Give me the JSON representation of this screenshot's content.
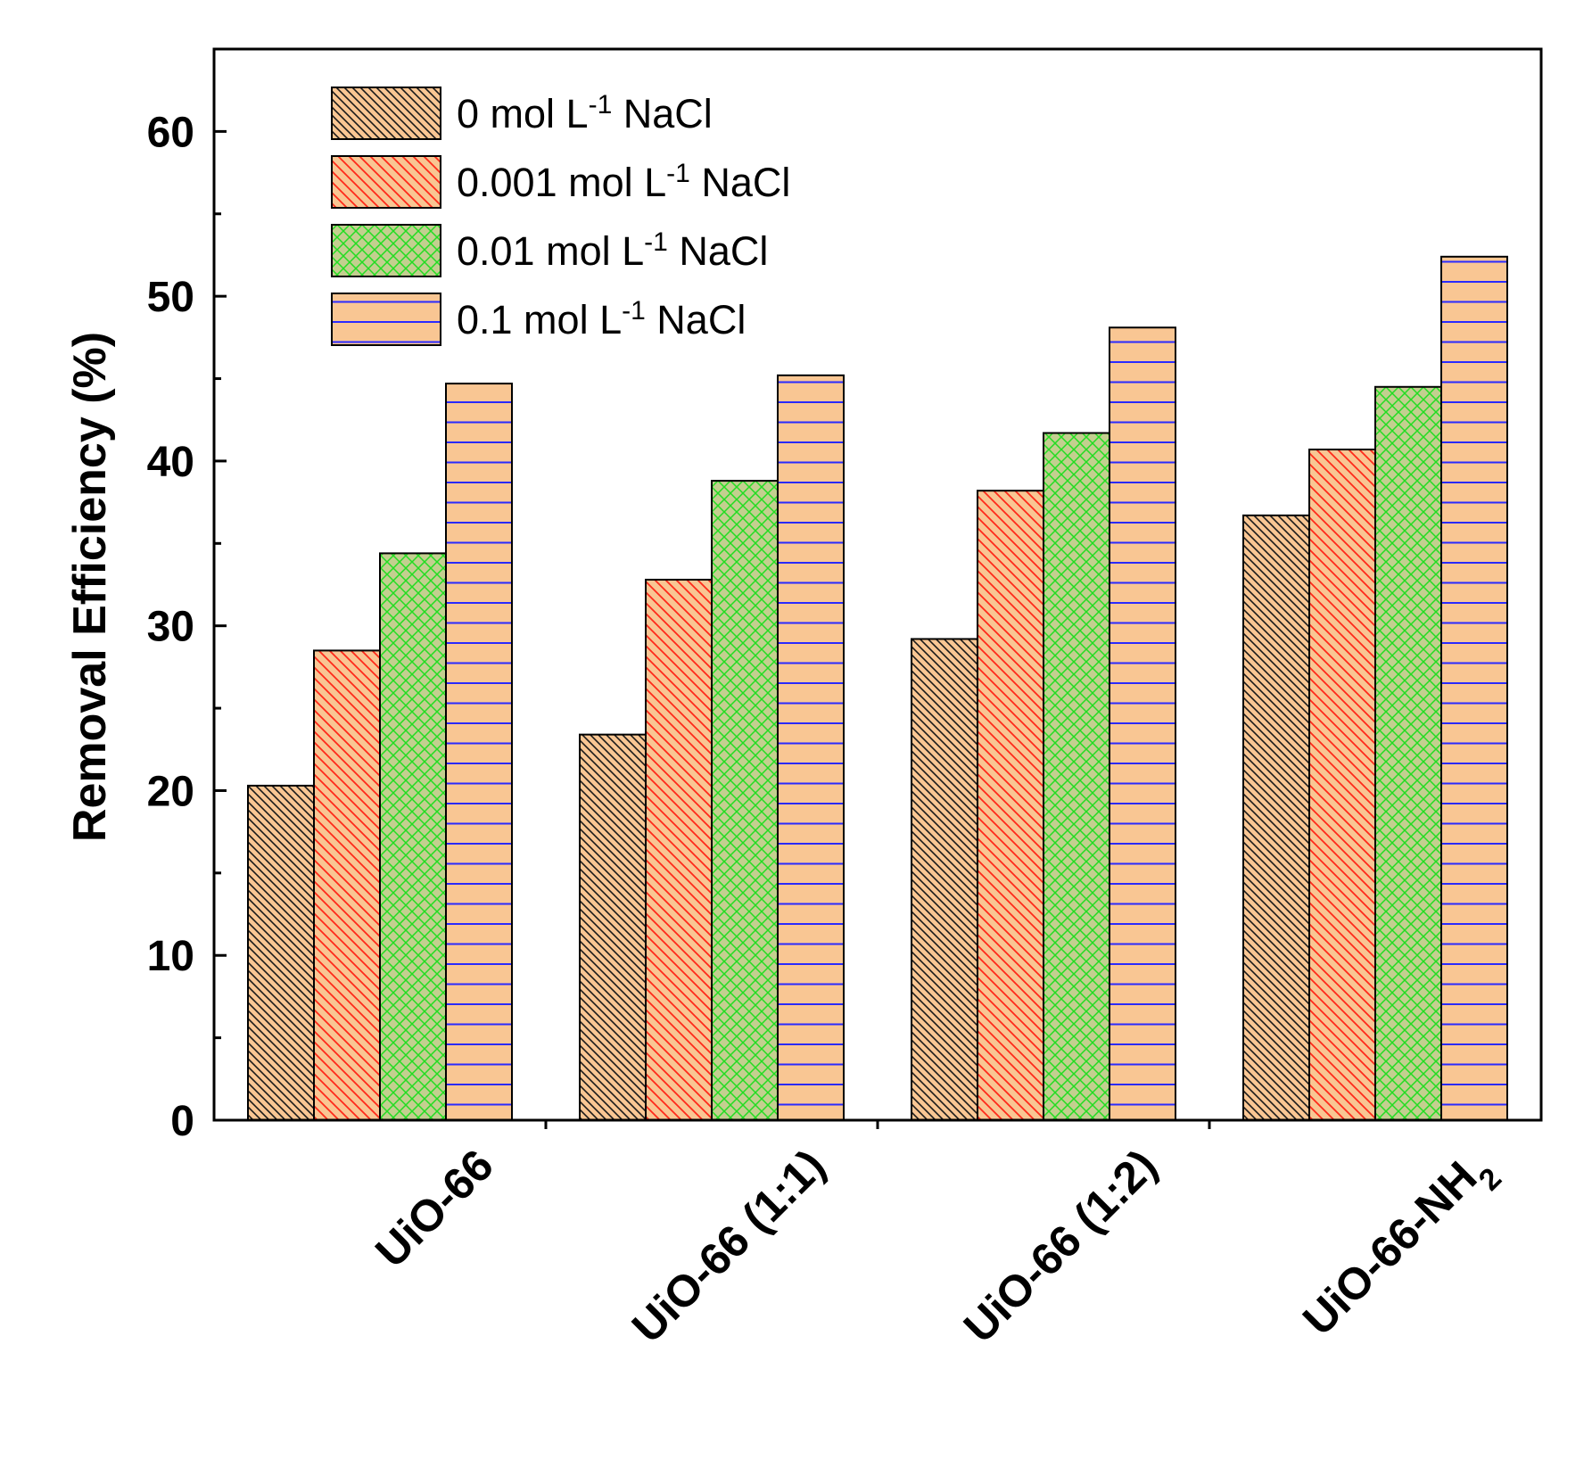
{
  "chart_data": {
    "type": "bar",
    "title": "",
    "xlabel": "",
    "ylabel": "Removal Efficiency (%)",
    "ylim": [
      0,
      65
    ],
    "yticks": [
      0,
      10,
      20,
      30,
      40,
      50,
      60
    ],
    "ytick_labels": [
      "0",
      "10",
      "20",
      "30",
      "40",
      "50",
      "60"
    ],
    "grid": false,
    "legend_position": "top-left",
    "categories": [
      {
        "main": "UiO-66",
        "sub": ""
      },
      {
        "main": "UiO-66 (1:1)",
        "sub": ""
      },
      {
        "main": "UiO-66 (1:2)",
        "sub": ""
      },
      {
        "main": "UiO-66-NH",
        "sub": "2"
      }
    ],
    "series": [
      {
        "name": "0 mol L-1 NaCl",
        "label_parts": {
          "pre": "0 mol L",
          "sup": "-1",
          "post": " NaCl"
        },
        "values": [
          20.3,
          23.4,
          29.2,
          36.7
        ],
        "fill": "#f9c693",
        "hatch": "backslash-dense",
        "hatch_color": "#1a1a1a"
      },
      {
        "name": "0.001 mol L-1 NaCl",
        "label_parts": {
          "pre": "0.001 mol L",
          "sup": "-1",
          "post": " NaCl"
        },
        "values": [
          28.5,
          32.8,
          38.2,
          40.7
        ],
        "fill": "#f9c693",
        "hatch": "slash",
        "hatch_color": "#ff2a1a"
      },
      {
        "name": "0.01 mol L-1 NaCl",
        "label_parts": {
          "pre": "0.01 mol L",
          "sup": "-1",
          "post": " NaCl"
        },
        "values": [
          34.4,
          38.8,
          41.7,
          44.5
        ],
        "fill": "#c3cf8f",
        "hatch": "cross",
        "hatch_color": "#22dd22"
      },
      {
        "name": "0.1 mol L-1 NaCl",
        "label_parts": {
          "pre": "0.1 mol L",
          "sup": "-1",
          "post": " NaCl"
        },
        "values": [
          44.7,
          45.2,
          48.1,
          52.4
        ],
        "fill": "#f9c693",
        "hatch": "horizontal",
        "hatch_color": "#2a2aff"
      }
    ]
  }
}
